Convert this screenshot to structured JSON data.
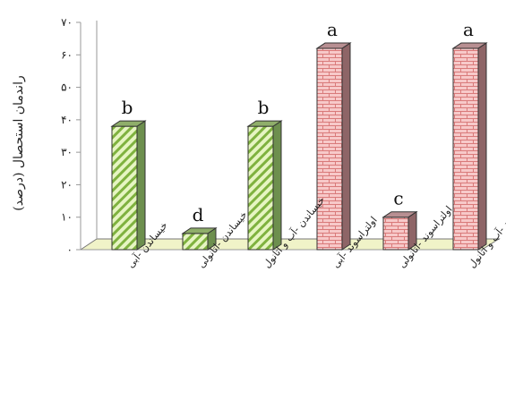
{
  "chart_data": {
    "type": "bar",
    "ylabel": "راندمان استحصال (درصد)",
    "ylim": [
      0,
      70
    ],
    "yticks": [
      "۰",
      "۱۰",
      "۲۰",
      "۳۰",
      "۴۰",
      "۵۰",
      "۶۰",
      "۷۰"
    ],
    "categories": [
      "خیساندن -آبی",
      "خیساندن -اتانولی",
      "خیساندن -آب و اتانول",
      "اولتراسوند -آبی",
      "اولتراسوند -اتانولی",
      "اولتراسوند -آب و اتانول"
    ],
    "values": [
      38,
      5,
      38,
      62,
      10,
      62
    ],
    "significance": [
      "b",
      "d",
      "b",
      "a",
      "c",
      "a"
    ],
    "colors": {
      "green_front": "#e6f5c2",
      "green_stripe": "#7fb23f",
      "green_top": "#8fae6a",
      "green_side": "#6d8f4e",
      "red_front": "#f7c9c9",
      "red_mortar": "#d97a7a",
      "red_top": "#b88f92",
      "red_side": "#8e6567",
      "floor": "#f0f3c8"
    },
    "patterns": [
      "diagonal-stripes",
      "diagonal-stripes",
      "diagonal-stripes",
      "brick",
      "brick",
      "brick"
    ],
    "grid": false,
    "legend": "none"
  }
}
